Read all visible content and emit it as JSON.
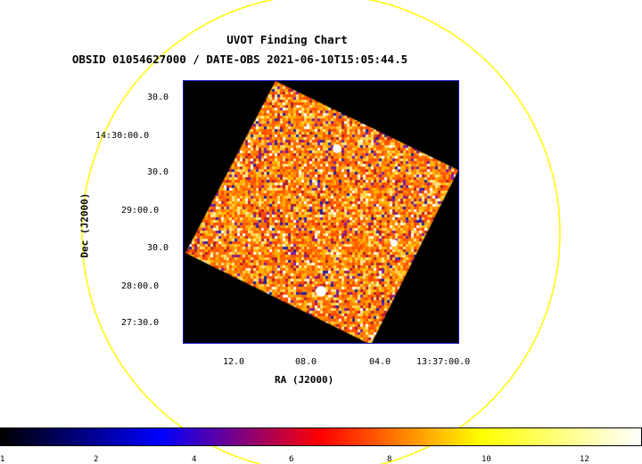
{
  "header": {
    "title": "UVOT Finding Chart",
    "subtitle": "OBSID 01054627000 / DATE-OBS 2021-06-10T15:05:44.5"
  },
  "axes": {
    "xlabel": "RA (J2000)",
    "ylabel": "Dec (J2000)",
    "xticks": [
      "12.0",
      "08.0",
      "04.0",
      "13:37:00.0"
    ],
    "yticks": [
      "30.0",
      "14:30:00.0",
      "30.0",
      "29:00.0",
      "30.0",
      "28:00.0",
      "27:30.0"
    ]
  },
  "colorbar": {
    "ticks": [
      "1",
      "2",
      "4",
      "6",
      "8",
      "10",
      "12"
    ],
    "colors": [
      "#000000",
      "#0000ff",
      "#ff0000",
      "#ffff00",
      "#ffffff"
    ]
  },
  "image": {
    "colormap": [
      "#b01e2e",
      "#ff4a00",
      "#ff6a00",
      "#ff8c00",
      "#ffb400",
      "#ffd24a",
      "#ffe890",
      "#ffffff",
      "#7a1ea0",
      "#2020a0"
    ],
    "circle_color": "#ffff00",
    "frame_border_color": "#1a1ac8"
  }
}
